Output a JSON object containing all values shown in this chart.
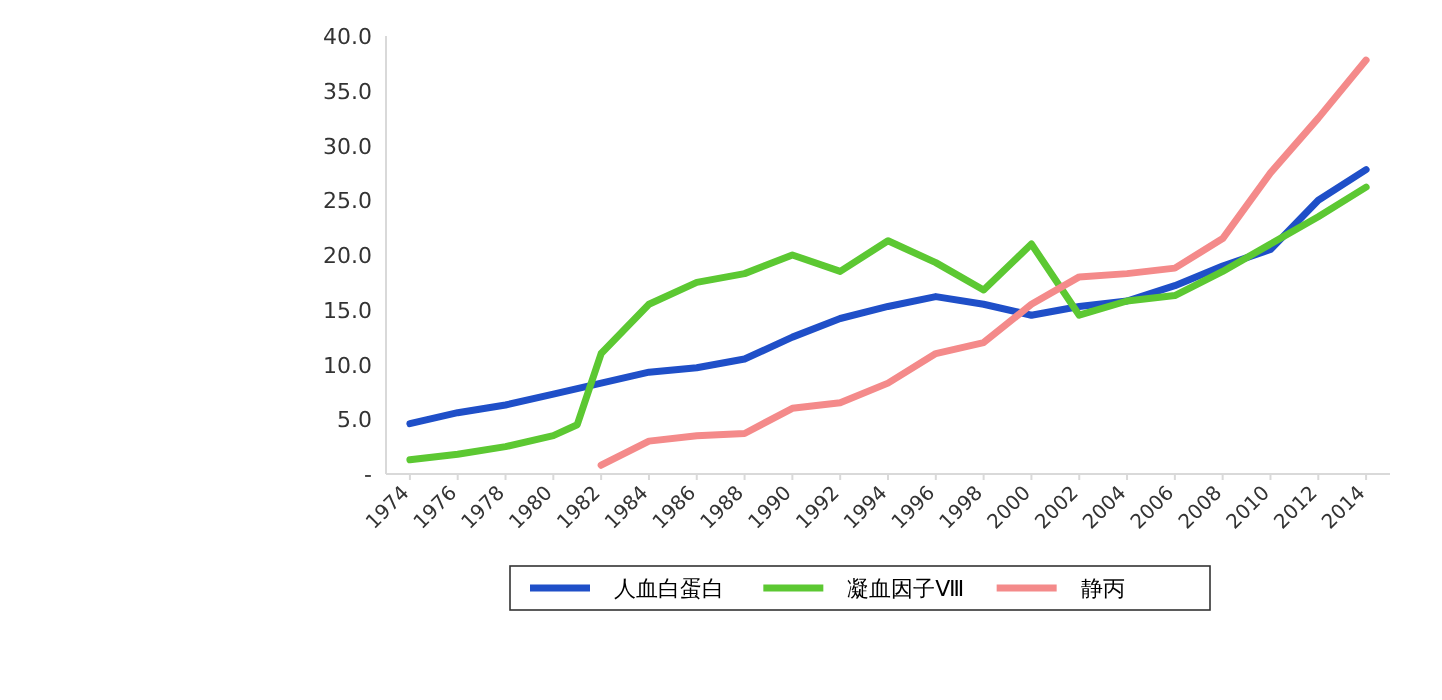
{
  "chart_data": {
    "type": "line",
    "xlim": [
      1973,
      2015
    ],
    "xticks": [
      1974,
      1976,
      1978,
      1980,
      1982,
      1984,
      1986,
      1988,
      1990,
      1992,
      1994,
      1996,
      1998,
      2000,
      2002,
      2004,
      2006,
      2008,
      2010,
      2012,
      2014
    ],
    "ylim": [
      0,
      40
    ],
    "yticks": [
      {
        "value": 0,
        "label": "-"
      },
      {
        "value": 5,
        "label": "5.0"
      },
      {
        "value": 10,
        "label": "10.0"
      },
      {
        "value": 15,
        "label": "15.0"
      },
      {
        "value": 20,
        "label": "20.0"
      },
      {
        "value": 25,
        "label": "25.0"
      },
      {
        "value": 30,
        "label": "30.0"
      },
      {
        "value": 35,
        "label": "35.0"
      },
      {
        "value": 40,
        "label": "40.0"
      }
    ],
    "grid": false,
    "legend": "bottom",
    "marker": "none",
    "line_style": "solid",
    "series": [
      {
        "name": "人血白蛋白",
        "color": "#1f4fc8",
        "x": [
          1974,
          1976,
          1978,
          1980,
          1982,
          1984,
          1986,
          1988,
          1990,
          1992,
          1994,
          1996,
          1998,
          2000,
          2002,
          2004,
          2006,
          2008,
          2010,
          2012,
          2014
        ],
        "values": [
          4.6,
          5.6,
          6.3,
          7.3,
          8.3,
          9.3,
          9.7,
          10.5,
          12.5,
          14.2,
          15.3,
          16.2,
          15.5,
          14.5,
          15.3,
          15.8,
          17.2,
          19.0,
          20.5,
          25.0,
          27.8
        ]
      },
      {
        "name": "凝血因子Ⅷ",
        "color": "#5cc832",
        "x": [
          1974,
          1976,
          1978,
          1980,
          1981,
          1982,
          1984,
          1986,
          1988,
          1990,
          1992,
          1994,
          1996,
          1998,
          2000,
          2002,
          2004,
          2006,
          2008,
          2010,
          2012,
          2014
        ],
        "values": [
          1.3,
          1.8,
          2.5,
          3.5,
          4.5,
          11.0,
          15.5,
          17.5,
          18.3,
          20.0,
          18.5,
          21.3,
          19.3,
          16.8,
          21.0,
          14.5,
          15.8,
          16.3,
          18.5,
          21.0,
          23.5,
          26.2
        ]
      },
      {
        "name": "静丙",
        "color": "#f48a8a",
        "x": [
          1982,
          1984,
          1986,
          1988,
          1990,
          1992,
          1994,
          1996,
          1998,
          2000,
          2002,
          2004,
          2006,
          2008,
          2010,
          2012,
          2014
        ],
        "values": [
          0.8,
          3.0,
          3.5,
          3.7,
          6.0,
          6.5,
          8.3,
          11.0,
          12.0,
          15.5,
          18.0,
          18.3,
          18.8,
          21.5,
          27.5,
          32.5,
          37.8
        ]
      }
    ]
  }
}
